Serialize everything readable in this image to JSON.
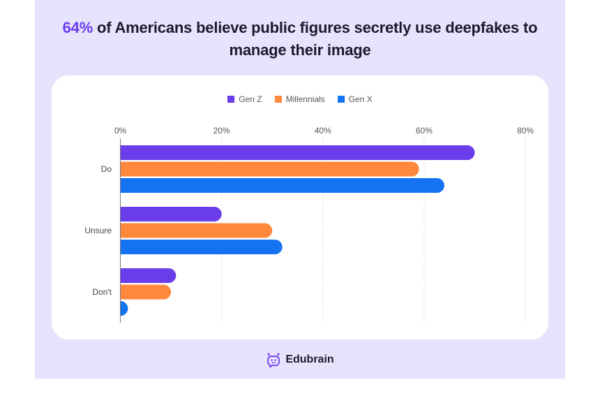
{
  "header": {
    "title_highlight": "64%",
    "title_rest": " of Americans believe public figures secretly use deepfakes to manage their image"
  },
  "footer": {
    "brand": "Edubrain",
    "logo_icon": "robot-face-icon"
  },
  "colors": {
    "Gen Z": "#6a3cea",
    "Millennials": "#ff883d",
    "Gen X": "#1473f0",
    "accent": "#6b3cf0",
    "panel": "#e6e3fd"
  },
  "chart_data": {
    "type": "bar",
    "orientation": "horizontal",
    "title": "64% of Americans believe public figures secretly use deepfakes to manage their image",
    "categories": [
      "Do",
      "Unsure",
      "Don't"
    ],
    "series": [
      {
        "name": "Gen Z",
        "values": [
          70,
          20,
          11
        ]
      },
      {
        "name": "Millennials",
        "values": [
          59,
          30,
          10
        ]
      },
      {
        "name": "Gen X",
        "values": [
          64,
          32,
          1.5
        ]
      }
    ],
    "xlabel": "",
    "ylabel": "",
    "xlim": [
      0,
      80
    ],
    "xticks": [
      0,
      20,
      40,
      60,
      80
    ],
    "xtick_labels": [
      "0%",
      "20%",
      "40%",
      "60%",
      "80%"
    ],
    "grid": true,
    "legend": "top-center"
  }
}
